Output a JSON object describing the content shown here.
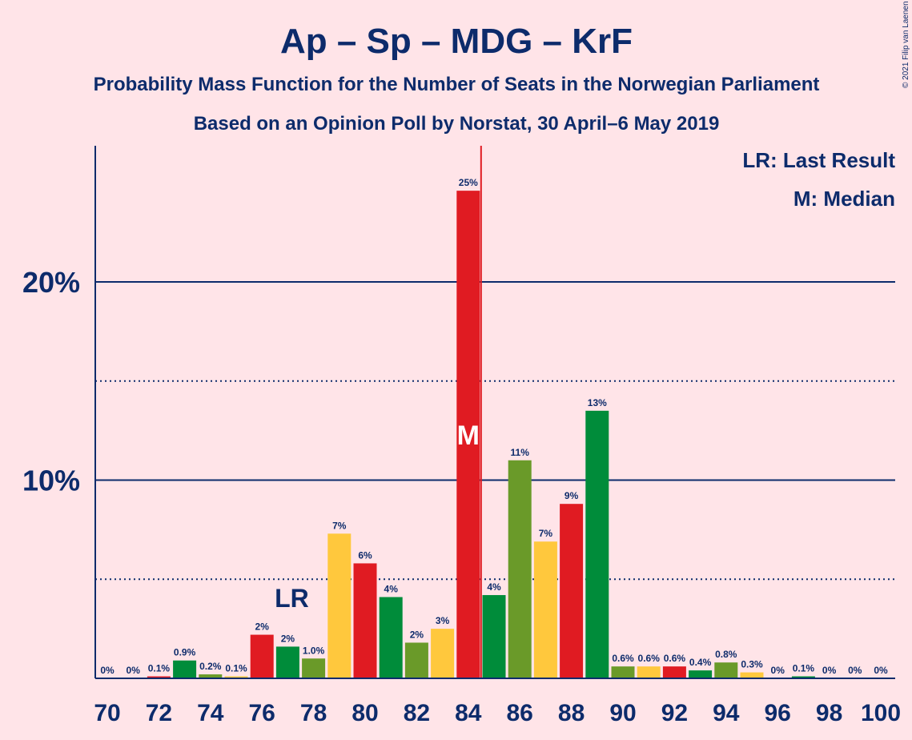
{
  "title": "Ap – Sp – MDG – KrF",
  "subtitle1": "Probability Mass Function for the Number of Seats in the Norwegian Parliament",
  "subtitle2": "Based on an Opinion Poll by Norstat, 30 April–6 May 2019",
  "copyright": "© 2021 Filip van Laenen",
  "legend": {
    "last_result": "LR: Last Result",
    "median": "M: Median"
  },
  "markers": {
    "last_result_label": "LR",
    "last_result_seat": 77,
    "median_label": "M",
    "median_seat": 84
  },
  "colors": {
    "background": "#FFE4E8",
    "text": "#0D2B6B",
    "red": "#E01B22",
    "green": "#008C3A",
    "olive": "#6A9A29",
    "yellow": "#FFC83D"
  },
  "chart_data": {
    "type": "bar",
    "xlabel": "",
    "ylabel": "",
    "ylim": [
      0,
      27
    ],
    "y_ticks_labeled": [
      {
        "value": 10,
        "label": "10%"
      },
      {
        "value": 20,
        "label": "20%"
      }
    ],
    "y_gridlines_dotted": [
      5,
      15
    ],
    "x_ticks": [
      70,
      72,
      74,
      76,
      78,
      80,
      82,
      84,
      86,
      88,
      90,
      92,
      94,
      96,
      98,
      100
    ],
    "bars": [
      {
        "seats": 70,
        "value": 0,
        "label": "0%",
        "color": "green"
      },
      {
        "seats": 71,
        "value": 0,
        "label": "0%",
        "color": "yellow"
      },
      {
        "seats": 72,
        "value": 0.1,
        "label": "0.1%",
        "color": "red"
      },
      {
        "seats": 73,
        "value": 0.9,
        "label": "0.9%",
        "color": "green"
      },
      {
        "seats": 74,
        "value": 0.2,
        "label": "0.2%",
        "color": "olive"
      },
      {
        "seats": 75,
        "value": 0.1,
        "label": "0.1%",
        "color": "yellow"
      },
      {
        "seats": 76,
        "value": 2.2,
        "label": "2%",
        "color": "red"
      },
      {
        "seats": 77,
        "value": 1.6,
        "label": "2%",
        "color": "green"
      },
      {
        "seats": 78,
        "value": 1.0,
        "label": "1.0%",
        "color": "olive"
      },
      {
        "seats": 79,
        "value": 7.3,
        "label": "7%",
        "color": "yellow"
      },
      {
        "seats": 80,
        "value": 5.8,
        "label": "6%",
        "color": "red"
      },
      {
        "seats": 81,
        "value": 4.1,
        "label": "4%",
        "color": "green"
      },
      {
        "seats": 82,
        "value": 1.8,
        "label": "2%",
        "color": "olive"
      },
      {
        "seats": 83,
        "value": 2.5,
        "label": "3%",
        "color": "yellow"
      },
      {
        "seats": 84,
        "value": 24.6,
        "label": "25%",
        "color": "red"
      },
      {
        "seats": 85,
        "value": 4.2,
        "label": "4%",
        "color": "green"
      },
      {
        "seats": 86,
        "value": 11.0,
        "label": "11%",
        "color": "olive"
      },
      {
        "seats": 87,
        "value": 6.9,
        "label": "7%",
        "color": "yellow"
      },
      {
        "seats": 88,
        "value": 8.8,
        "label": "9%",
        "color": "red"
      },
      {
        "seats": 89,
        "value": 13.5,
        "label": "13%",
        "color": "green"
      },
      {
        "seats": 90,
        "value": 0.6,
        "label": "0.6%",
        "color": "olive"
      },
      {
        "seats": 91,
        "value": 0.6,
        "label": "0.6%",
        "color": "yellow"
      },
      {
        "seats": 92,
        "value": 0.6,
        "label": "0.6%",
        "color": "red"
      },
      {
        "seats": 93,
        "value": 0.4,
        "label": "0.4%",
        "color": "green"
      },
      {
        "seats": 94,
        "value": 0.8,
        "label": "0.8%",
        "color": "olive"
      },
      {
        "seats": 95,
        "value": 0.3,
        "label": "0.3%",
        "color": "yellow"
      },
      {
        "seats": 96,
        "value": 0,
        "label": "0%",
        "color": "red"
      },
      {
        "seats": 97,
        "value": 0.1,
        "label": "0.1%",
        "color": "green"
      },
      {
        "seats": 98,
        "value": 0,
        "label": "0%",
        "color": "olive"
      },
      {
        "seats": 99,
        "value": 0,
        "label": "0%",
        "color": "yellow"
      },
      {
        "seats": 100,
        "value": 0,
        "label": "0%",
        "color": "red"
      }
    ]
  }
}
